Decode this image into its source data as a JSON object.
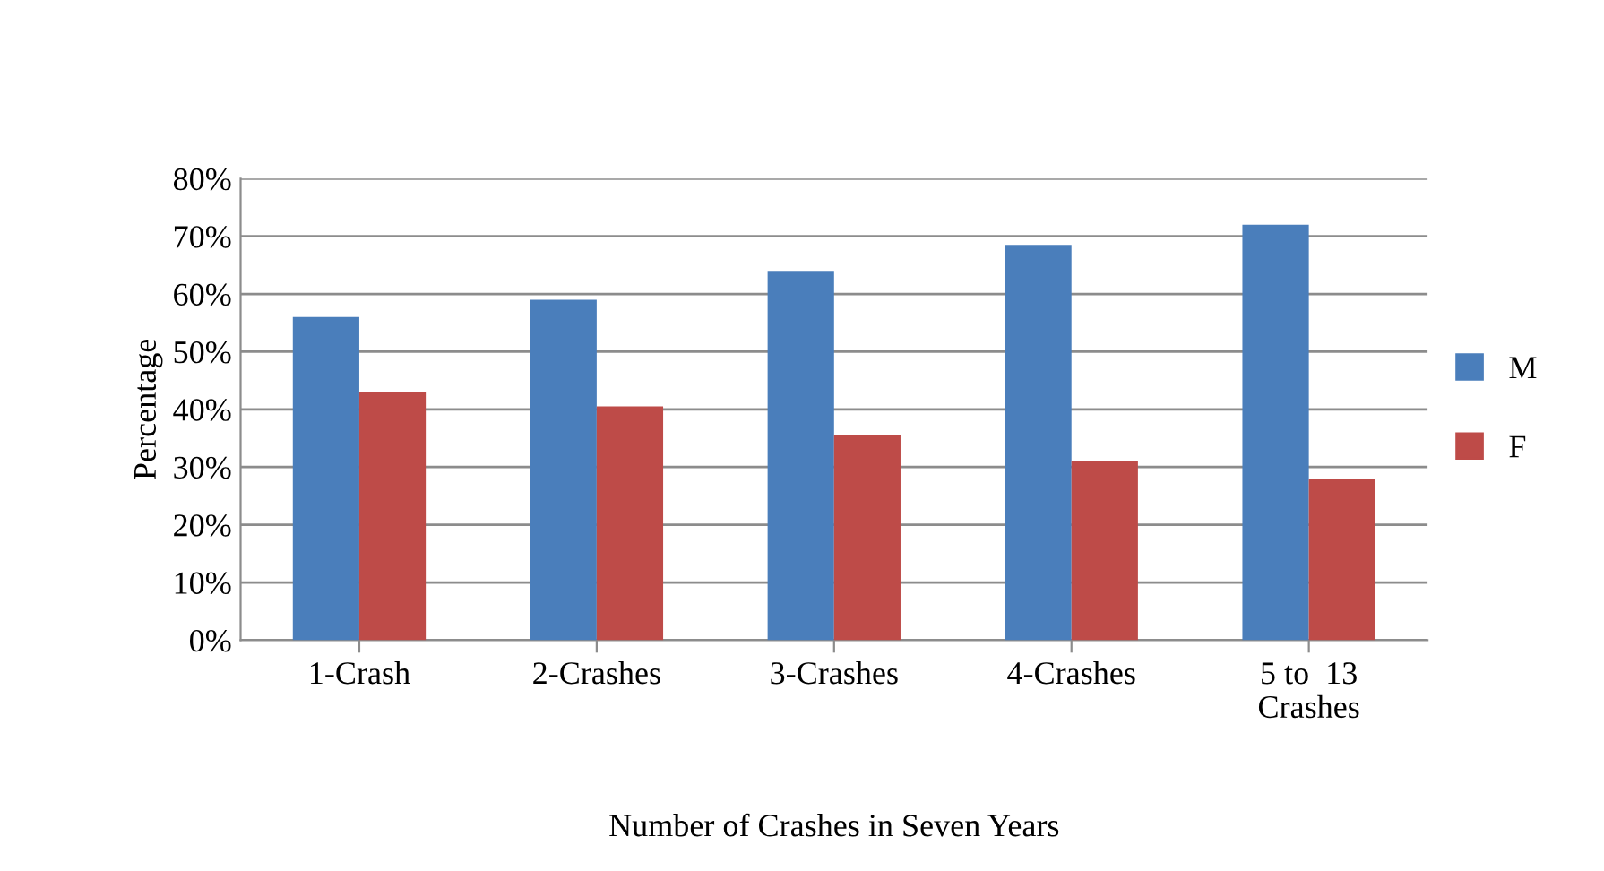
{
  "chart_data": {
    "type": "bar",
    "xlabel": "Number of Crashes in Seven Years",
    "ylabel": "Percentage",
    "categories": [
      "1-Crash",
      "2-Crashes",
      "3-Crashes",
      "4-Crashes",
      "5 to  13\nCrashes"
    ],
    "series": [
      {
        "name": "M",
        "color": "#4a7ebb",
        "values": [
          56,
          59,
          64,
          68.5,
          72
        ]
      },
      {
        "name": "F",
        "color": "#be4b48",
        "values": [
          43,
          40.5,
          35.5,
          31,
          28
        ]
      }
    ],
    "ylim": [
      0,
      80
    ],
    "yticks": [
      {
        "value": 0,
        "label": "0%"
      },
      {
        "value": 10,
        "label": "10%"
      },
      {
        "value": 20,
        "label": "20%"
      },
      {
        "value": 30,
        "label": "30%"
      },
      {
        "value": 40,
        "label": "40%"
      },
      {
        "value": 50,
        "label": "50%"
      },
      {
        "value": 60,
        "label": "60%"
      },
      {
        "value": 70,
        "label": "70%"
      },
      {
        "value": 80,
        "label": "80%"
      }
    ],
    "grid": "y",
    "legend": "right"
  }
}
